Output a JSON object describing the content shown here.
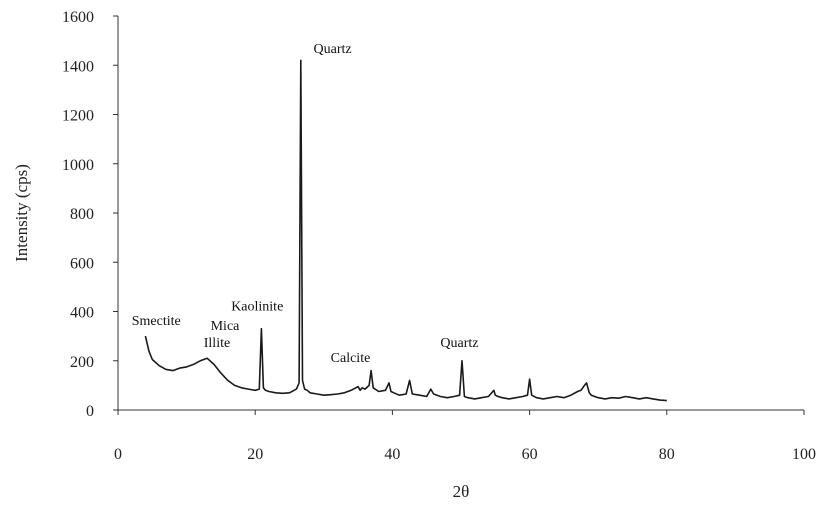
{
  "chart_data": {
    "type": "line",
    "title": "",
    "xlabel": "2θ",
    "ylabel": "Intensity (cps)",
    "xlim": [
      0,
      100
    ],
    "ylim": [
      0,
      1600
    ],
    "x_ticks": [
      0,
      20,
      40,
      60,
      80,
      100
    ],
    "y_ticks": [
      0,
      200,
      400,
      600,
      800,
      1000,
      1200,
      1400,
      1600
    ],
    "grid": false,
    "legend": "none",
    "line_color": "#1a1a1a",
    "series": [
      {
        "x": [
          4,
          4.5,
          5,
          6,
          7,
          8,
          9,
          10,
          11,
          12,
          13,
          14,
          15,
          16,
          17,
          18,
          19,
          20,
          20.6,
          20.9,
          21.2,
          21.5,
          22,
          23,
          24,
          25,
          26,
          26.4,
          26.65,
          26.9,
          27.2,
          27.6,
          28,
          29,
          30,
          31,
          32,
          33,
          34,
          35,
          35.3,
          35.6,
          36,
          36.6,
          36.9,
          37.2,
          38,
          39,
          39.5,
          39.8,
          40.2,
          41,
          42,
          42.5,
          42.9,
          44,
          45,
          45.6,
          46,
          47,
          48,
          49,
          49.8,
          50.15,
          50.5,
          51,
          52,
          53,
          54,
          54.8,
          55,
          55.4,
          56,
          57,
          58,
          59,
          59.7,
          60,
          60.3,
          61,
          62,
          63,
          64,
          65,
          66,
          67,
          67.5,
          68,
          68.3,
          68.7,
          69,
          70,
          71,
          72,
          73,
          74,
          75,
          76,
          77,
          78,
          79,
          80
        ],
        "y": [
          300,
          240,
          205,
          180,
          165,
          160,
          170,
          175,
          185,
          200,
          210,
          185,
          150,
          120,
          100,
          90,
          85,
          80,
          85,
          330,
          90,
          80,
          75,
          70,
          68,
          70,
          85,
          110,
          1420,
          120,
          85,
          80,
          70,
          65,
          60,
          62,
          65,
          70,
          80,
          95,
          80,
          90,
          85,
          100,
          160,
          90,
          75,
          80,
          110,
          75,
          70,
          60,
          65,
          120,
          65,
          60,
          55,
          85,
          65,
          55,
          50,
          55,
          60,
          200,
          55,
          50,
          45,
          50,
          55,
          80,
          60,
          55,
          50,
          45,
          50,
          55,
          60,
          125,
          60,
          50,
          45,
          50,
          55,
          50,
          60,
          75,
          80,
          100,
          110,
          70,
          60,
          50,
          45,
          50,
          48,
          55,
          50,
          45,
          50,
          45,
          40,
          38
        ]
      }
    ],
    "annotations": [
      {
        "text": "Quartz",
        "x": 28.5,
        "y": 1450
      },
      {
        "text": "Smectite",
        "x": 2,
        "y": 345
      },
      {
        "text": "Mica",
        "x": 13.5,
        "y": 325
      },
      {
        "text": "Illite",
        "x": 12.5,
        "y": 255
      },
      {
        "text": "Kaolinite",
        "x": 16.5,
        "y": 405
      },
      {
        "text": "Calcite",
        "x": 31,
        "y": 195
      },
      {
        "text": "Quartz",
        "x": 47,
        "y": 255
      }
    ]
  }
}
